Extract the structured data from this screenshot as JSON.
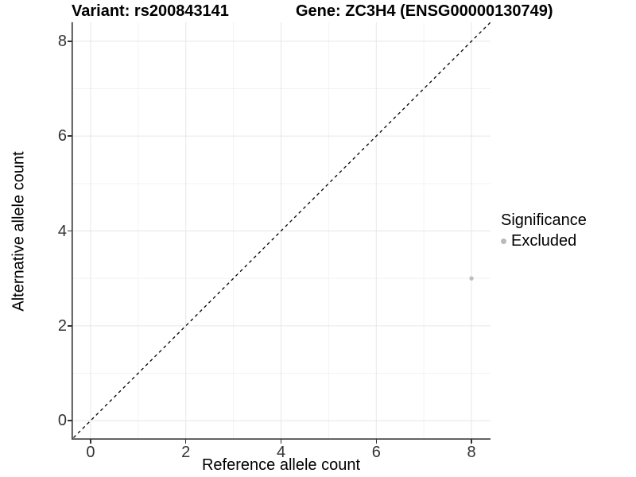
{
  "chart_data": {
    "type": "scatter",
    "titles": {
      "variant": "Variant: rs200843141",
      "gene": "Gene: ZC3H4 (ENSG00000130749)"
    },
    "xlabel": "Reference allele count",
    "ylabel": "Alternative allele count",
    "xlim": [
      -0.4,
      8.4
    ],
    "ylim": [
      -0.4,
      8.4
    ],
    "x_ticks": [
      0,
      2,
      4,
      6,
      8
    ],
    "y_ticks": [
      0,
      2,
      4,
      6,
      8
    ],
    "x_minor_ticks": [
      1,
      3,
      5,
      7
    ],
    "y_minor_ticks": [
      1,
      3,
      5,
      7
    ],
    "grid": "major and minor gridlines on, white panel background",
    "series": [
      {
        "name": "Excluded",
        "color": "#bebebe",
        "point_radius": 2.7,
        "points": [
          {
            "x": 8,
            "y": 3
          }
        ]
      }
    ],
    "reference_line": {
      "description": "identity line y = x",
      "style": "dashed",
      "color": "#000000"
    },
    "legend": {
      "position": "right",
      "title": "Significance",
      "entries": [
        {
          "label": "Excluded",
          "color": "#b9b9b9"
        }
      ]
    },
    "colors": {
      "grid_major": "#e6e6e6",
      "grid_minor": "#f3f3f3",
      "axis_line": "#333333",
      "tick_text": "#333333",
      "title_text": "#000000"
    }
  }
}
